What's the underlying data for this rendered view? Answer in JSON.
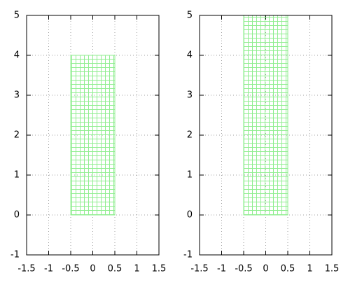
{
  "chart_data": [
    {
      "type": "bar",
      "x": [
        0
      ],
      "values": [
        4
      ],
      "bar_width": 1,
      "color": "#90ee90",
      "xlim": [
        -1.5,
        1.5
      ],
      "xticks": [
        -1.5,
        -1,
        -0.5,
        0,
        0.5,
        1,
        1.5
      ],
      "ylim": [
        -1,
        5
      ],
      "yticks": [
        -1,
        0,
        1,
        2,
        3,
        4,
        5
      ],
      "grid": true
    },
    {
      "type": "bar",
      "x": [
        0
      ],
      "values": [
        5
      ],
      "bar_width": 1,
      "color": "#90ee90",
      "xlim": [
        -1.5,
        1.5
      ],
      "xticks": [
        -1.5,
        -1,
        -0.5,
        0,
        0.5,
        1,
        1.5
      ],
      "ylim": [
        -1,
        5
      ],
      "yticks": [
        -1,
        0,
        1,
        2,
        3,
        4,
        5
      ],
      "grid": true
    }
  ]
}
